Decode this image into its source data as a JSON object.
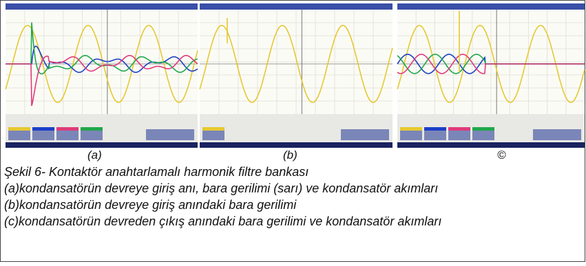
{
  "figure": {
    "panels": [
      {
        "label": "(a)"
      },
      {
        "label": "(b)"
      },
      {
        "label": "©"
      }
    ],
    "caption": {
      "title": "Şekil 6-  Kontaktör anahtarlamalı harmonik filtre bankası",
      "lines": [
        "(a)kondansatörün devreye giriş anı, bara gerilimi (sarı) ve kondansatör akımları",
        "(b)kondansatörün devreye giriş anındaki bara gerilimi",
        "(c)kondansatörün devreden çıkış anındaki bara gerilimi ve kondansatör akımları"
      ]
    }
  }
}
